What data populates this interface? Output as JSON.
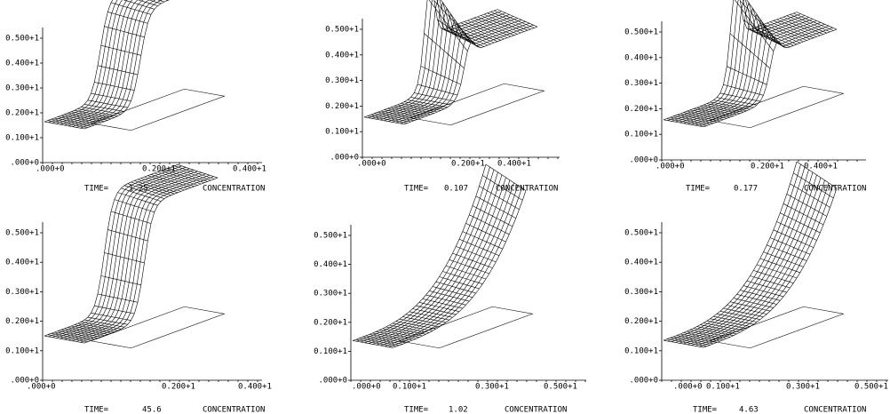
{
  "panels": [
    {
      "yticks": [
        ".000+0",
        "0.100+1",
        "0.200+1",
        "0.300+1",
        "0.400+1",
        "0.500+1"
      ],
      "xticks": [
        ".000+0",
        "0.200+1",
        "0.400+1"
      ],
      "time_label": "TIME=",
      "time": "1.25",
      "caption": "CONCENTRATION"
    },
    {
      "yticks": [
        ".000+0",
        "0.100+1",
        "0.200+1",
        "0.300+1",
        "0.400+1",
        "0.500+1"
      ],
      "xticks": [
        ".000+0",
        "0.200+1",
        "0.400+1"
      ],
      "time_label": "TIME=",
      "time": "0.107",
      "caption": "CONCENTRATION"
    },
    {
      "yticks": [
        ".000+0",
        "0.100+1",
        "0.200+1",
        "0.300+1",
        "0.400+1",
        "0.500+1"
      ],
      "xticks": [
        ".000+0",
        "0.200+1",
        "0.400+1"
      ],
      "time_label": "TIME=",
      "time": "0.177",
      "caption": "CONCENTRATION"
    },
    {
      "yticks": [
        ".000+0",
        "0.100+1",
        "0.200+1",
        "0.300+1",
        "0.400+1",
        "0.500+1"
      ],
      "xticks": [
        ".000+0",
        "0.200+1",
        "0.400+1"
      ],
      "time_label": "TIME=",
      "time": "45.6",
      "caption": "CONCENTRATION"
    },
    {
      "yticks": [
        ".000+0",
        "0.100+1",
        "0.200+1",
        "0.300+1",
        "0.400+1",
        "0.500+1"
      ],
      "xticks": [
        ".000+0",
        "0.100+1",
        "0.300+1",
        "0.500+1"
      ],
      "time_label": "TIME=",
      "time": "1.02",
      "caption": "CONCENTRATION"
    },
    {
      "yticks": [
        ".000+0",
        "0.100+1",
        "0.200+1",
        "0.300+1",
        "0.400+1",
        "0.500+1"
      ],
      "xticks": [
        ".000+0",
        "0.100+1",
        "0.300+1",
        "0.500+1"
      ],
      "time_label": "TIME=",
      "time": "4.63",
      "caption": "CONCENTRATION"
    }
  ]
}
